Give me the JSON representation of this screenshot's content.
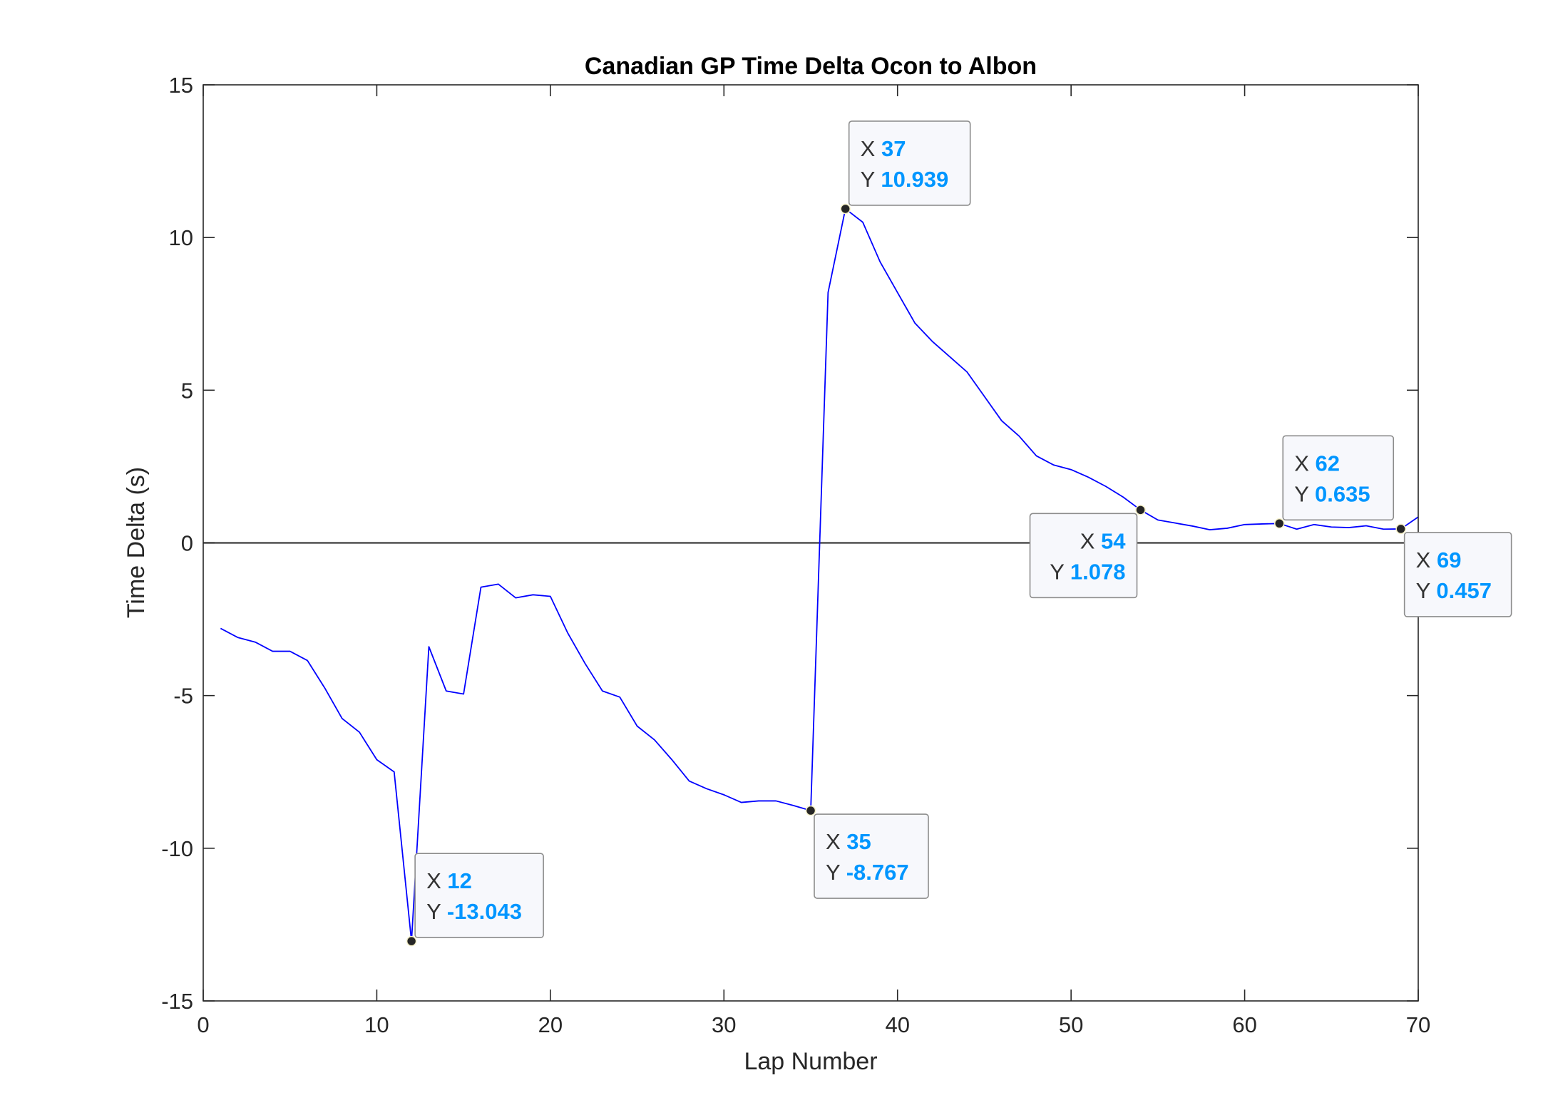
{
  "chart_data": {
    "type": "line",
    "title": "Canadian GP Time Delta Ocon to Albon",
    "xlabel": "Lap Number",
    "ylabel": "Time Delta (s)",
    "xlim": [
      0,
      70
    ],
    "ylim": [
      -15,
      15
    ],
    "xticks": [
      "0",
      "10",
      "20",
      "30",
      "40",
      "50",
      "60",
      "70"
    ],
    "yticks": [
      "15",
      "10",
      "5",
      "0",
      "-5",
      "-10",
      "-15"
    ],
    "grid": false,
    "legend": "none",
    "reference_line_y": 0,
    "series": [
      {
        "color": "#0000ff",
        "x": [
          1,
          2,
          3,
          4,
          5,
          6,
          7,
          8,
          9,
          10,
          11,
          12,
          13,
          14,
          15,
          16,
          17,
          18,
          19,
          20,
          21,
          22,
          23,
          24,
          25,
          26,
          27,
          28,
          29,
          30,
          31,
          32,
          33,
          34,
          35,
          36,
          37,
          38,
          39,
          40,
          41,
          42,
          43,
          44,
          45,
          46,
          47,
          48,
          49,
          50,
          51,
          52,
          53,
          54,
          55,
          56,
          57,
          58,
          59,
          60,
          61,
          62,
          63,
          64,
          65,
          66,
          67,
          68,
          69,
          70
        ],
        "y": [
          -2.8,
          -3.1,
          -3.25,
          -3.55,
          -3.55,
          -3.85,
          -4.75,
          -5.75,
          -6.2,
          -7.1,
          -7.5,
          -13.043,
          -3.4,
          -4.85,
          -4.95,
          -1.45,
          -1.35,
          -1.8,
          -1.7,
          -1.75,
          -2.95,
          -3.95,
          -4.85,
          -5.05,
          -6.0,
          -6.45,
          -7.1,
          -7.8,
          -8.05,
          -8.25,
          -8.5,
          -8.45,
          -8.45,
          -8.6,
          -8.767,
          8.2,
          10.939,
          10.5,
          9.2,
          8.2,
          7.2,
          6.6,
          6.1,
          5.6,
          4.8,
          4.0,
          3.5,
          2.85,
          2.55,
          2.4,
          2.15,
          1.85,
          1.5,
          1.078,
          0.75,
          0.65,
          0.55,
          0.43,
          0.48,
          0.6,
          0.62,
          0.635,
          0.45,
          0.6,
          0.52,
          0.5,
          0.56,
          0.45,
          0.457,
          0.85
        ]
      }
    ],
    "datatips": [
      {
        "x_key": "X",
        "x_val": "12",
        "y_key": "Y",
        "y_val": "-13.043",
        "x": 12,
        "y": -13.043
      },
      {
        "x_key": "X",
        "x_val": "35",
        "y_key": "Y",
        "y_val": "-8.767",
        "x": 35,
        "y": -8.767
      },
      {
        "x_key": "X",
        "x_val": "37",
        "y_key": "Y",
        "y_val": "10.939",
        "x": 37,
        "y": 10.939
      },
      {
        "x_key": "X",
        "x_val": "54",
        "y_key": "Y",
        "y_val": "1.078",
        "x": 54,
        "y": 1.078
      },
      {
        "x_key": "X",
        "x_val": "62",
        "y_key": "Y",
        "y_val": "0.635",
        "x": 62,
        "y": 0.635
      },
      {
        "x_key": "X",
        "x_val": "69",
        "y_key": "Y",
        "y_val": "0.457",
        "x": 69,
        "y": 0.457
      }
    ]
  }
}
